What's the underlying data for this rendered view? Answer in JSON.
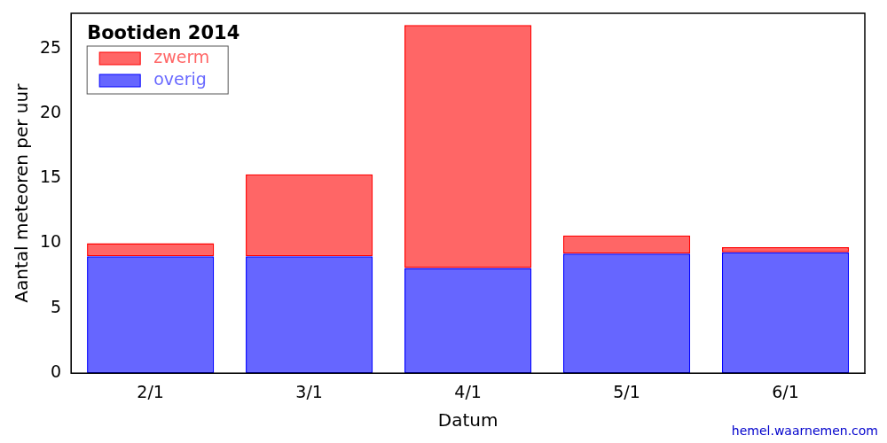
{
  "chart_data": {
    "type": "bar",
    "stacked": true,
    "title": "Bootiden 2014",
    "x_label": "Datum",
    "y_label": "Aantal meteoren per uur",
    "source": "hemel.waarnemen.com",
    "categories": [
      "2/1",
      "3/1",
      "4/1",
      "5/1",
      "6/1"
    ],
    "series": [
      {
        "name": "overig",
        "color": "#0000ff",
        "values": [
          9.0,
          9.0,
          8.1,
          9.2,
          9.3
        ]
      },
      {
        "name": "zwerm",
        "color": "#ff0000",
        "values": [
          1.0,
          6.3,
          18.7,
          1.4,
          0.4
        ]
      }
    ],
    "ylim": [
      0,
      27.7
    ],
    "yticks": [
      0,
      5,
      10,
      15,
      20,
      25
    ],
    "grid": false,
    "legend": "upper left"
  }
}
